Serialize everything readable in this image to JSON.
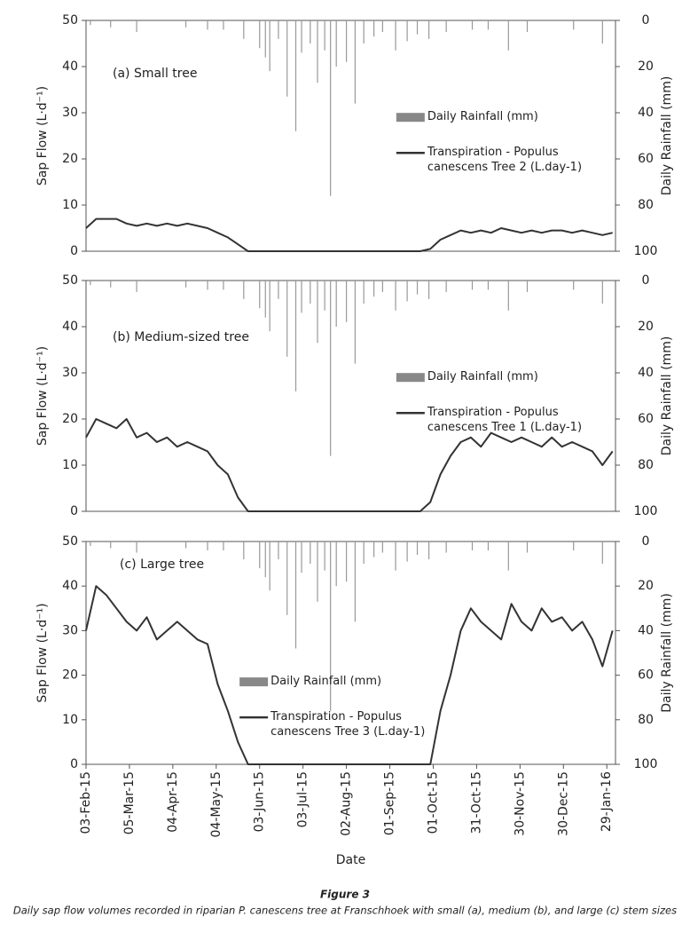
{
  "chart_data": [
    {
      "type": "line",
      "title": "(a)  Small tree",
      "ylabel": "Sap Flow (L·d⁻¹)",
      "y2label": "Daily Rainfall (mm)",
      "legend": "center right",
      "xlim": [
        "2015-02-03",
        "2016-02-04"
      ],
      "ylim": [
        0,
        50
      ],
      "yticks": [
        0,
        10,
        20,
        30,
        40,
        50
      ],
      "y2lim": [
        100,
        0
      ],
      "y2ticks": [
        0,
        20,
        40,
        60,
        80,
        100
      ],
      "x": [
        "2015-02-03",
        "2015-02-10",
        "2015-02-17",
        "2015-02-24",
        "2015-03-03",
        "2015-03-10",
        "2015-03-17",
        "2015-03-24",
        "2015-03-31",
        "2015-04-07",
        "2015-04-14",
        "2015-04-21",
        "2015-04-28",
        "2015-05-05",
        "2015-05-12",
        "2015-05-19",
        "2015-05-26",
        "2015-06-02",
        "2015-06-09",
        "2015-06-16",
        "2015-06-23",
        "2015-06-30",
        "2015-07-07",
        "2015-07-14",
        "2015-07-21",
        "2015-07-28",
        "2015-08-04",
        "2015-08-11",
        "2015-08-18",
        "2015-08-25",
        "2015-09-01",
        "2015-09-08",
        "2015-09-15",
        "2015-09-22",
        "2015-09-29",
        "2015-10-06",
        "2015-10-13",
        "2015-10-20",
        "2015-10-27",
        "2015-11-03",
        "2015-11-10",
        "2015-11-17",
        "2015-11-24",
        "2015-12-01",
        "2015-12-08",
        "2015-12-15",
        "2015-12-22",
        "2015-12-29",
        "2016-01-05",
        "2016-01-12",
        "2016-01-19",
        "2016-01-26",
        "2016-02-02"
      ],
      "series": [
        {
          "name": "Daily Rainfall (mm)",
          "color": "#999999",
          "axis": "y2",
          "x": [
            "2015-02-06",
            "2015-02-20",
            "2015-03-10",
            "2015-04-13",
            "2015-04-28",
            "2015-05-09",
            "2015-05-23",
            "2015-06-03",
            "2015-06-07",
            "2015-06-10",
            "2015-06-16",
            "2015-06-22",
            "2015-06-28",
            "2015-07-02",
            "2015-07-08",
            "2015-07-13",
            "2015-07-18",
            "2015-07-22",
            "2015-07-26",
            "2015-08-02",
            "2015-08-08",
            "2015-08-14",
            "2015-08-21",
            "2015-08-27",
            "2015-09-05",
            "2015-09-13",
            "2015-09-20",
            "2015-09-28",
            "2015-10-10",
            "2015-10-28",
            "2015-11-08",
            "2015-11-22",
            "2015-12-05",
            "2016-01-06",
            "2016-01-26"
          ],
          "values": [
            2,
            3,
            5,
            3,
            4,
            4,
            8,
            12,
            16,
            22,
            8,
            33,
            48,
            14,
            10,
            27,
            13,
            76,
            20,
            18,
            36,
            10,
            7,
            5,
            13,
            9,
            6,
            8,
            5,
            4,
            4,
            13,
            5,
            4,
            10
          ]
        },
        {
          "name": "Transpiration - Populus canescens Tree 2 (L.day-1)",
          "color": "#333333",
          "values": [
            5,
            7,
            7,
            7,
            6,
            5.5,
            6,
            5.5,
            6,
            5.5,
            6,
            5.5,
            5,
            4,
            3,
            1.5,
            0,
            0,
            0,
            0,
            0,
            0,
            0,
            0,
            0,
            0,
            0,
            0,
            0,
            0,
            0,
            0,
            0,
            0,
            0.5,
            2.5,
            3.5,
            4.5,
            4,
            4.5,
            4,
            5,
            4.5,
            4,
            4.5,
            4,
            4.5,
            4.5,
            4,
            4.5,
            4,
            3.5,
            4
          ]
        }
      ]
    },
    {
      "type": "line",
      "title": "(b) Medium-sized tree",
      "ylabel": "Sap Flow (L·d⁻¹)",
      "y2label": "Daily Rainfall (mm)",
      "legend": "center right",
      "xlim": [
        "2015-02-03",
        "2016-02-04"
      ],
      "ylim": [
        0,
        50
      ],
      "yticks": [
        0,
        10,
        20,
        30,
        40,
        50
      ],
      "y2lim": [
        100,
        0
      ],
      "y2ticks": [
        0,
        20,
        40,
        60,
        80,
        100
      ],
      "x": [
        "2015-02-03",
        "2015-02-10",
        "2015-02-17",
        "2015-02-24",
        "2015-03-03",
        "2015-03-10",
        "2015-03-17",
        "2015-03-24",
        "2015-03-31",
        "2015-04-07",
        "2015-04-14",
        "2015-04-21",
        "2015-04-28",
        "2015-05-05",
        "2015-05-12",
        "2015-05-19",
        "2015-05-26",
        "2015-06-02",
        "2015-06-09",
        "2015-06-16",
        "2015-06-23",
        "2015-06-30",
        "2015-07-07",
        "2015-07-14",
        "2015-07-21",
        "2015-07-28",
        "2015-08-04",
        "2015-08-11",
        "2015-08-18",
        "2015-08-25",
        "2015-09-01",
        "2015-09-08",
        "2015-09-15",
        "2015-09-22",
        "2015-09-29",
        "2015-10-06",
        "2015-10-13",
        "2015-10-20",
        "2015-10-27",
        "2015-11-03",
        "2015-11-10",
        "2015-11-17",
        "2015-11-24",
        "2015-12-01",
        "2015-12-08",
        "2015-12-15",
        "2015-12-22",
        "2015-12-29",
        "2016-01-05",
        "2016-01-12",
        "2016-01-19",
        "2016-01-26",
        "2016-02-02"
      ],
      "series": [
        {
          "name": "Daily Rainfall (mm)",
          "color": "#999999",
          "axis": "y2",
          "x": [
            "2015-02-06",
            "2015-02-20",
            "2015-03-10",
            "2015-04-13",
            "2015-04-28",
            "2015-05-09",
            "2015-05-23",
            "2015-06-03",
            "2015-06-07",
            "2015-06-10",
            "2015-06-16",
            "2015-06-22",
            "2015-06-28",
            "2015-07-02",
            "2015-07-08",
            "2015-07-13",
            "2015-07-18",
            "2015-07-22",
            "2015-07-26",
            "2015-08-02",
            "2015-08-08",
            "2015-08-14",
            "2015-08-21",
            "2015-08-27",
            "2015-09-05",
            "2015-09-13",
            "2015-09-20",
            "2015-09-28",
            "2015-10-10",
            "2015-10-28",
            "2015-11-08",
            "2015-11-22",
            "2015-12-05",
            "2016-01-06",
            "2016-01-26"
          ],
          "values": [
            2,
            3,
            5,
            3,
            4,
            4,
            8,
            12,
            16,
            22,
            8,
            33,
            48,
            14,
            10,
            27,
            13,
            76,
            20,
            18,
            36,
            10,
            7,
            5,
            13,
            9,
            6,
            8,
            5,
            4,
            4,
            13,
            5,
            4,
            10
          ]
        },
        {
          "name": "Transpiration - Populus canescens Tree 1 (L.day-1)",
          "color": "#333333",
          "values": [
            16,
            20,
            19,
            18,
            20,
            16,
            17,
            15,
            16,
            14,
            15,
            14,
            13,
            10,
            8,
            3,
            0,
            0,
            0,
            0,
            0,
            0,
            0,
            0,
            0,
            0,
            0,
            0,
            0,
            0,
            0,
            0,
            0,
            0,
            2,
            8,
            12,
            15,
            16,
            14,
            17,
            16,
            15,
            16,
            15,
            14,
            16,
            14,
            15,
            14,
            13,
            10,
            13
          ]
        }
      ]
    },
    {
      "type": "line",
      "title": "(c) Large tree",
      "ylabel": "Sap Flow  (L·d⁻¹)",
      "y2label": "Daily Rainfall (mm)",
      "xlabel": "Date",
      "legend": "lower left",
      "xlim": [
        "2015-02-03",
        "2016-02-04"
      ],
      "ylim": [
        0,
        50
      ],
      "yticks": [
        0,
        10,
        20,
        30,
        40,
        50
      ],
      "y2lim": [
        100,
        0
      ],
      "y2ticks": [
        0,
        20,
        40,
        60,
        80,
        100
      ],
      "xticks": [
        {
          "value": "2015-02-03",
          "label": "03-Feb-15"
        },
        {
          "value": "2015-03-05",
          "label": "05-Mar-15"
        },
        {
          "value": "2015-04-04",
          "label": "04-Apr-15"
        },
        {
          "value": "2015-05-04",
          "label": "04-May-15"
        },
        {
          "value": "2015-06-03",
          "label": "03-Jun-15"
        },
        {
          "value": "2015-07-03",
          "label": "03-Jul-15"
        },
        {
          "value": "2015-08-02",
          "label": "02-Aug-15"
        },
        {
          "value": "2015-09-01",
          "label": "01-Sep-15"
        },
        {
          "value": "2015-10-01",
          "label": "01-Oct-15"
        },
        {
          "value": "2015-10-31",
          "label": "31-Oct-15"
        },
        {
          "value": "2015-11-30",
          "label": "30-Nov-15"
        },
        {
          "value": "2015-12-30",
          "label": "30-Dec-15"
        },
        {
          "value": "2016-01-29",
          "label": "29-Jan-16"
        }
      ],
      "x": [
        "2015-02-03",
        "2015-02-10",
        "2015-02-17",
        "2015-02-24",
        "2015-03-03",
        "2015-03-10",
        "2015-03-17",
        "2015-03-24",
        "2015-03-31",
        "2015-04-07",
        "2015-04-14",
        "2015-04-21",
        "2015-04-28",
        "2015-05-05",
        "2015-05-12",
        "2015-05-19",
        "2015-05-26",
        "2015-06-02",
        "2015-06-09",
        "2015-06-16",
        "2015-06-23",
        "2015-06-30",
        "2015-07-07",
        "2015-07-14",
        "2015-07-21",
        "2015-07-28",
        "2015-08-04",
        "2015-08-11",
        "2015-08-18",
        "2015-08-25",
        "2015-09-01",
        "2015-09-08",
        "2015-09-15",
        "2015-09-22",
        "2015-09-29",
        "2015-10-06",
        "2015-10-13",
        "2015-10-20",
        "2015-10-27",
        "2015-11-03",
        "2015-11-10",
        "2015-11-17",
        "2015-11-24",
        "2015-12-01",
        "2015-12-08",
        "2015-12-15",
        "2015-12-22",
        "2015-12-29",
        "2016-01-05",
        "2016-01-12",
        "2016-01-19",
        "2016-01-26",
        "2016-02-02"
      ],
      "series": [
        {
          "name": "Daily Rainfall (mm)",
          "color": "#999999",
          "axis": "y2",
          "x": [
            "2015-02-06",
            "2015-02-20",
            "2015-03-10",
            "2015-04-13",
            "2015-04-28",
            "2015-05-09",
            "2015-05-23",
            "2015-06-03",
            "2015-06-07",
            "2015-06-10",
            "2015-06-16",
            "2015-06-22",
            "2015-06-28",
            "2015-07-02",
            "2015-07-08",
            "2015-07-13",
            "2015-07-18",
            "2015-07-22",
            "2015-07-26",
            "2015-08-02",
            "2015-08-08",
            "2015-08-14",
            "2015-08-21",
            "2015-08-27",
            "2015-09-05",
            "2015-09-13",
            "2015-09-20",
            "2015-09-28",
            "2015-10-10",
            "2015-10-28",
            "2015-11-08",
            "2015-11-22",
            "2015-12-05",
            "2016-01-06",
            "2016-01-26"
          ],
          "values": [
            2,
            3,
            5,
            3,
            4,
            4,
            8,
            12,
            16,
            22,
            8,
            33,
            48,
            14,
            10,
            27,
            13,
            76,
            20,
            18,
            36,
            10,
            7,
            5,
            13,
            9,
            6,
            8,
            5,
            4,
            4,
            13,
            5,
            4,
            10
          ]
        },
        {
          "name": "Transpiration - Populus canescens Tree 3 (L.day-1)",
          "color": "#333333",
          "values": [
            30,
            40,
            38,
            35,
            32,
            30,
            33,
            28,
            30,
            32,
            30,
            28,
            27,
            18,
            12,
            5,
            0,
            0,
            0,
            0,
            0,
            0,
            0,
            0,
            0,
            0,
            0,
            0,
            0,
            0,
            0,
            0,
            0,
            0,
            0,
            12,
            20,
            30,
            35,
            32,
            30,
            28,
            36,
            32,
            30,
            35,
            32,
            33,
            30,
            32,
            28,
            22,
            30
          ]
        }
      ]
    }
  ],
  "caption": {
    "label": "Figure 3",
    "text": "Daily sap flow volumes recorded in riparian P. canescens tree at Franschhoek with small (a), medium (b), and large (c) stem sizes"
  }
}
